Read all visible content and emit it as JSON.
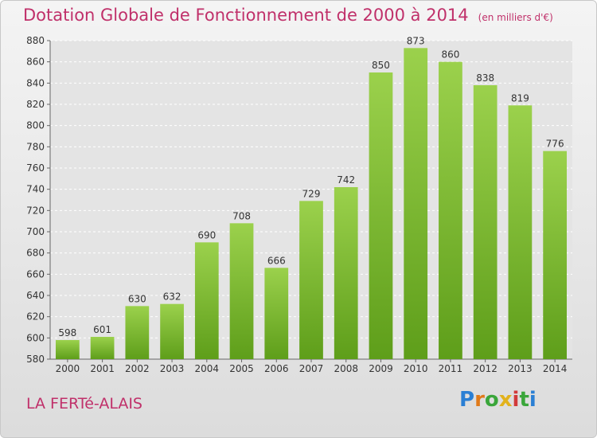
{
  "title": "Dotation Globale de Fonctionnement de 2000 à 2014",
  "unit": "(en milliers d'€)",
  "city": "LA FERTé-ALAIS",
  "logo": {
    "letters": [
      "P",
      "r",
      "o",
      "x",
      "i",
      "t",
      "i"
    ],
    "colors": [
      "#2a7fd4",
      "#e07a1a",
      "#3aa63a",
      "#e2b21c",
      "#d23a3a",
      "#3aa63a",
      "#2a7fd4"
    ]
  },
  "chart_data": {
    "type": "bar",
    "categories": [
      "2000",
      "2001",
      "2002",
      "2003",
      "2004",
      "2005",
      "2006",
      "2007",
      "2008",
      "2009",
      "2010",
      "2011",
      "2012",
      "2013",
      "2014"
    ],
    "values": [
      598,
      601,
      630,
      632,
      690,
      708,
      666,
      729,
      742,
      850,
      873,
      860,
      838,
      819,
      776
    ],
    "ylim": [
      580,
      880
    ],
    "yticks": [
      580,
      600,
      620,
      640,
      660,
      680,
      700,
      720,
      740,
      760,
      780,
      800,
      820,
      840,
      860,
      880
    ],
    "grid": true,
    "bar_color_top": "#9bd14c",
    "bar_color_bottom": "#5e9e1a",
    "title": "Dotation Globale de Fonctionnement de 2000 à 2014",
    "xlabel": "",
    "ylabel": ""
  }
}
